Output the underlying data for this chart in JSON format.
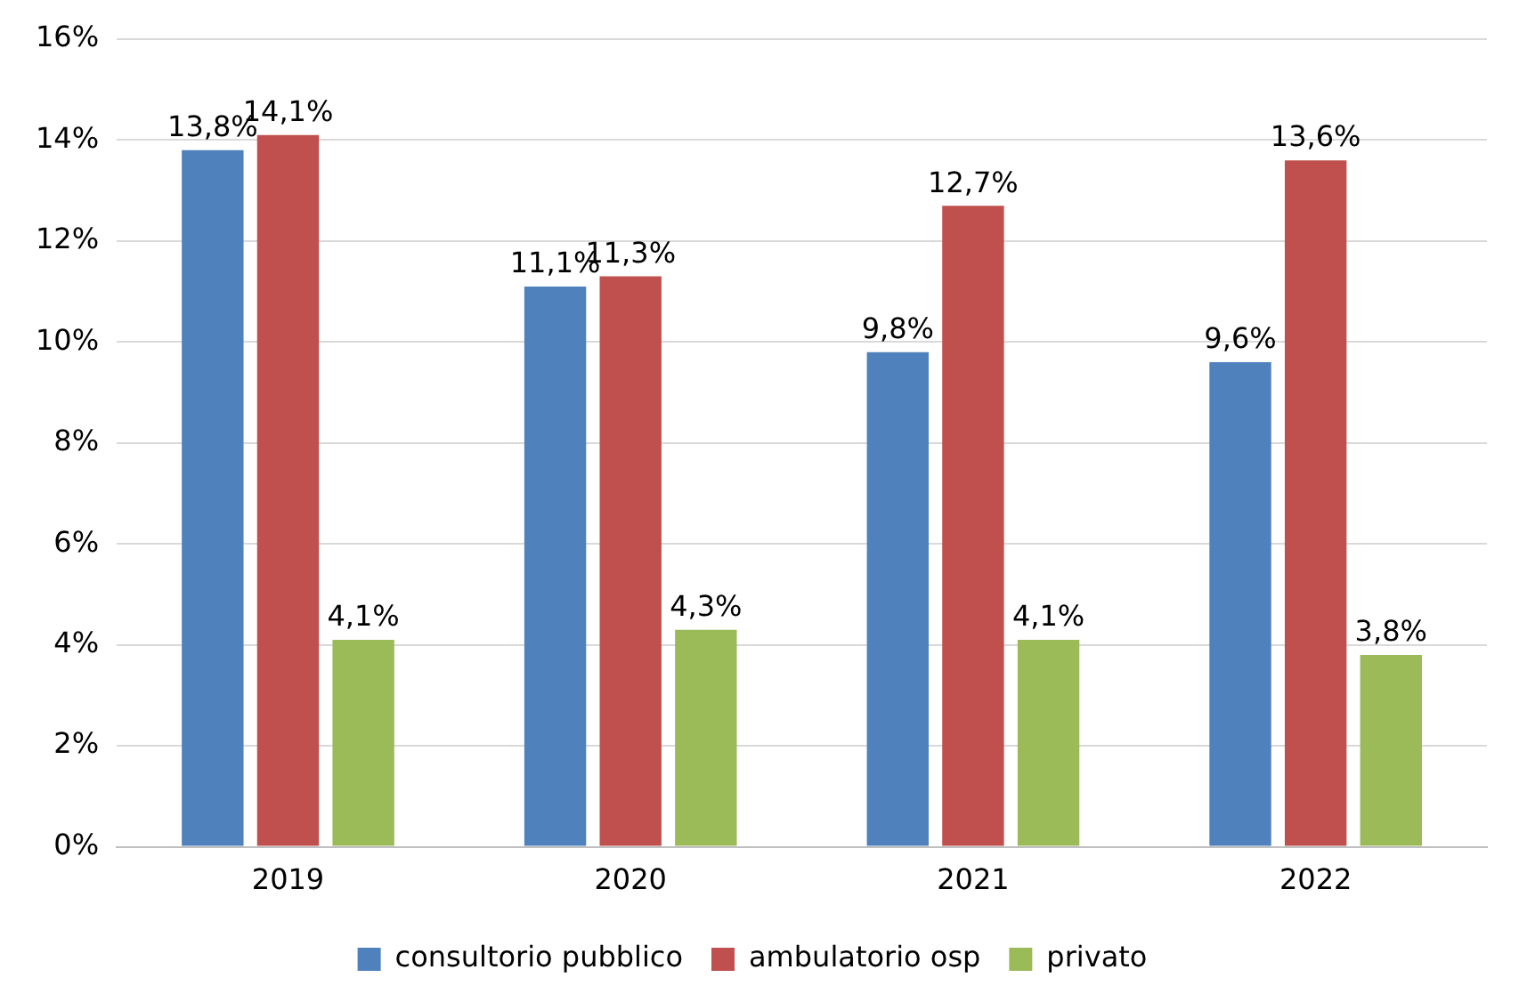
{
  "chart_data": {
    "type": "bar",
    "categories": [
      "2019",
      "2020",
      "2021",
      "2022"
    ],
    "series": [
      {
        "name": "consultorio pubblico",
        "color": "#4f81bd",
        "values": [
          13.8,
          11.1,
          9.8,
          9.6
        ],
        "value_labels": [
          "13,8%",
          "11,1%",
          "9,8%",
          "9,6%"
        ]
      },
      {
        "name": "ambulatorio osp",
        "color": "#c0504d",
        "values": [
          14.1,
          11.3,
          12.7,
          13.6
        ],
        "value_labels": [
          "14,1%",
          "11,3%",
          "12,7%",
          "13,6%"
        ]
      },
      {
        "name": "privato",
        "color": "#9bbb59",
        "values": [
          4.1,
          4.3,
          4.1,
          3.8
        ],
        "value_labels": [
          "4,1%",
          "4,3%",
          "4,1%",
          "3,8%"
        ]
      }
    ],
    "ylim": [
      0,
      16
    ],
    "yticks": [
      {
        "value": 0,
        "label": "0%"
      },
      {
        "value": 2,
        "label": "2%"
      },
      {
        "value": 4,
        "label": "4%"
      },
      {
        "value": 6,
        "label": "6%"
      },
      {
        "value": 8,
        "label": "8%"
      },
      {
        "value": 10,
        "label": "10%"
      },
      {
        "value": 12,
        "label": "12%"
      },
      {
        "value": 14,
        "label": "14%"
      },
      {
        "value": 16,
        "label": "16%"
      }
    ],
    "grid": "y",
    "legend": "bottom"
  }
}
